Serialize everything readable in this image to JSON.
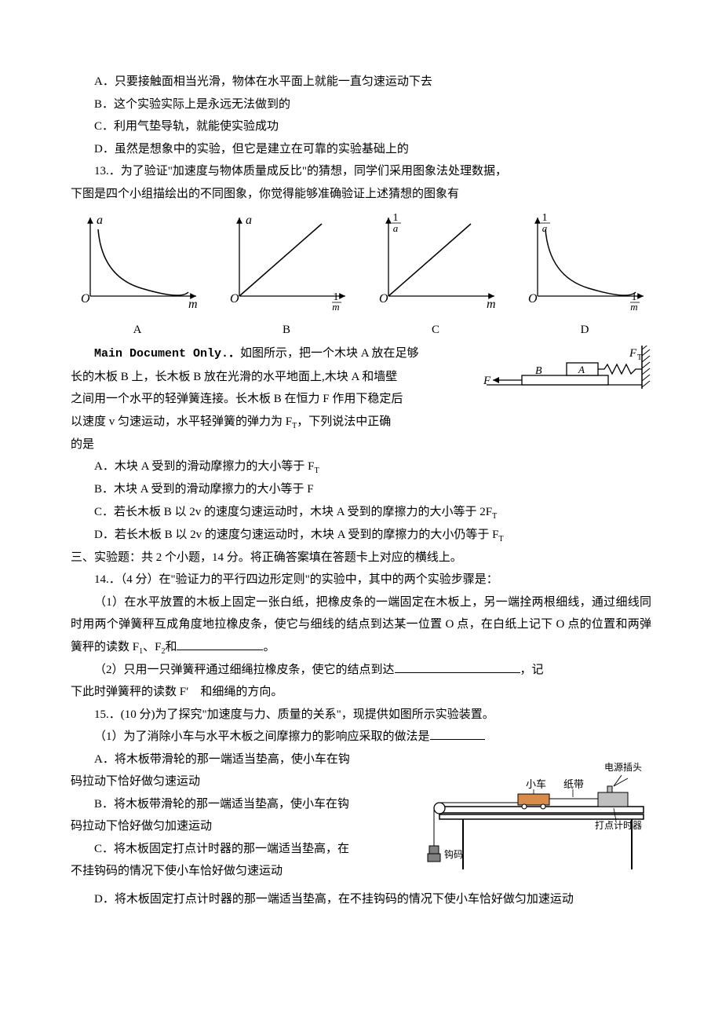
{
  "q12": {
    "optA": "A．只要接触面相当光滑，物体在水平面上就能一直匀速运动下去",
    "optB": "B．这个实验实际上是永远无法做到的",
    "optC": "C．利用气垫导轨，就能使实验成功",
    "optD": "D．虽然是想象中的实验，但它是建立在可靠的实验基础上的"
  },
  "q13": {
    "stem1": "13.．为了验证\"加速度与物体质量成反比\"的猜想，同学们采用图象法处理数据，",
    "stem2": "下图是四个小组描绘出的不同图象，你觉得能够准确验证上述猜想的图象有",
    "graphs": {
      "axis_color": "#000000",
      "label_fontsize": 14,
      "items": [
        {
          "y": "a",
          "x": "m",
          "cap": "A",
          "shape": "hyper"
        },
        {
          "y": "a",
          "x": "1/m",
          "cap": "B",
          "shape": "line"
        },
        {
          "y": "1/a",
          "x": "m",
          "cap": "C",
          "shape": "line"
        },
        {
          "y": "1/a",
          "x": "1/m",
          "cap": "D",
          "shape": "hyper"
        }
      ]
    }
  },
  "q14main": {
    "lead": "Main Document Only.．",
    "p1a": "如图所示，把一个木块 A 放在足够",
    "p1b": "长的木板 B 上，长木板 B 放在光滑的水平地面上,木块 A 和墙壁",
    "p1c": "之间用一个水平的轻弹簧连接。长木板 B 在恒力 F 作用下稳定后",
    "p1d": "以速度 v 匀速运动，水平轻弹簧的弹力为 F",
    "p1d2": "，下列说法中正确",
    "p1e": "的是",
    "optA": "A．木块 A 受到的滑动摩擦力的大小等于 F",
    "optB": "B．木块 A 受到的滑动摩擦力的大小等于 F",
    "optC": "C．若长木板 B 以 2v 的速度匀速运动时，木块 A 受到的摩擦力的大小等于 2F",
    "optD": "D．若长木板 B 以 2v 的速度匀速运动时，木块 A 受到的摩擦力的大小仍等于 F",
    "fig": {
      "F_label": "F",
      "FT_label": "F",
      "A_label": "A",
      "B_label": "B",
      "stroke": "#000000"
    }
  },
  "sec3": "三、实验题：共 2 个小题，14 分。将正确答案填在答题卡上对应的横线上。",
  "q14": {
    "stem": "14.．（4 分）在\"验证力的平行四边形定则\"的实验中，其中的两个实验步骤是：",
    "p1": "（1）在水平放置的木板上固定一张白纸，把橡皮条的一端固定在木板上，另一端拴两根细线，通过细线同时用两个弹簧秤互成角度地拉橡皮条，使它与细线的结点到达某一位置 O 点，在白纸上记下 O 点的位置和两弹簧秤的读数 F",
    "p1b": "、F",
    "p1c": "和",
    "p1d": "。",
    "p2a": "（2）只用一只弹簧秤通过细绳拉橡皮条，使它的结点到达",
    "p2b": "，记",
    "p2c": "下此时弹簧秤的读数 F′　和细绳的方向。",
    "blank1_width": 110,
    "blank2_width": 160
  },
  "q15": {
    "stem": "15.．(10 分)为了探究\"加速度与力、质量的关系\"，现提供如图所示实验装置。",
    "p1": "（1）为了消除小车与水平木板之间摩擦力的影响应采取的做法是",
    "optA1": "A．将木板带滑轮的那一端适当垫高，使小车在钩",
    "optA2": "码拉动下恰好做匀速运动",
    "optB1": "B．将木板带滑轮的那一端适当垫高，使小车在钩",
    "optB2": "码拉动下恰好做匀加速运动",
    "optC1": "C．将木板固定打点计时器的那一端适当垫高，在",
    "optC2": "不挂钩码的情况下使小车恰好做匀速运动",
    "optD": "D．将木板固定打点计时器的那一端适当垫高，在不挂钩码的情况下使小车恰好做匀加速运动",
    "blank_width": 70,
    "fig": {
      "labels": {
        "car": "小车",
        "tape": "纸带",
        "plug": "电源插头",
        "timer": "打点计时器",
        "weight": "钩码"
      },
      "colors": {
        "track": "#000000",
        "car": "#d98b4a",
        "timer": "#bfbfbf",
        "weight": "#808080"
      }
    }
  }
}
